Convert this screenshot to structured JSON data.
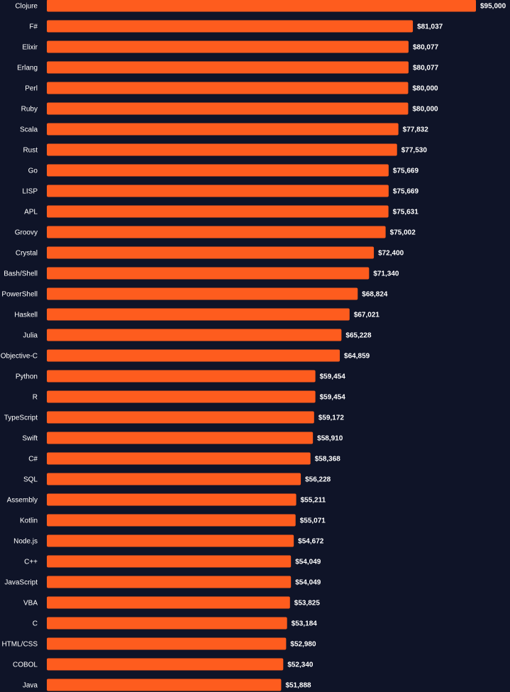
{
  "colors": {
    "background": "#0f1428",
    "bar": "#fe5c1e",
    "text": "#ffffff"
  },
  "chart_data": {
    "type": "bar",
    "orientation": "horizontal",
    "title": "",
    "xlabel": "",
    "ylabel": "",
    "grid": false,
    "legend": "none",
    "xlim": [
      0,
      95000
    ],
    "categories": [
      "Clojure",
      "F#",
      "Elixir",
      "Erlang",
      "Perl",
      "Ruby",
      "Scala",
      "Rust",
      "Go",
      "LISP",
      "APL",
      "Groovy",
      "Crystal",
      "Bash/Shell",
      "PowerShell",
      "Haskell",
      "Julia",
      "Objective-C",
      "Python",
      "R",
      "TypeScript",
      "Swift",
      "C#",
      "SQL",
      "Assembly",
      "Kotlin",
      "Node.js",
      "C++",
      "JavaScript",
      "VBA",
      "C",
      "HTML/CSS",
      "COBOL",
      "Java"
    ],
    "values": [
      95000,
      81037,
      80077,
      80077,
      80000,
      80000,
      77832,
      77530,
      75669,
      75669,
      75631,
      75002,
      72400,
      71340,
      68824,
      67021,
      65228,
      64859,
      59454,
      59454,
      59172,
      58910,
      58368,
      56228,
      55211,
      55071,
      54672,
      54049,
      54049,
      53825,
      53184,
      52980,
      52340,
      51888
    ],
    "value_labels": [
      "$95,000",
      "$81,037",
      "$80,077",
      "$80,077",
      "$80,000",
      "$80,000",
      "$77,832",
      "$77,530",
      "$75,669",
      "$75,669",
      "$75,631",
      "$75,002",
      "$72,400",
      "$71,340",
      "$68,824",
      "$67,021",
      "$65,228",
      "$64,859",
      "$59,454",
      "$59,454",
      "$59,172",
      "$58,910",
      "$58,368",
      "$56,228",
      "$55,211",
      "$55,071",
      "$54,672",
      "$54,049",
      "$54,049",
      "$53,825",
      "$53,184",
      "$52,980",
      "$52,340",
      "$51,888"
    ]
  }
}
